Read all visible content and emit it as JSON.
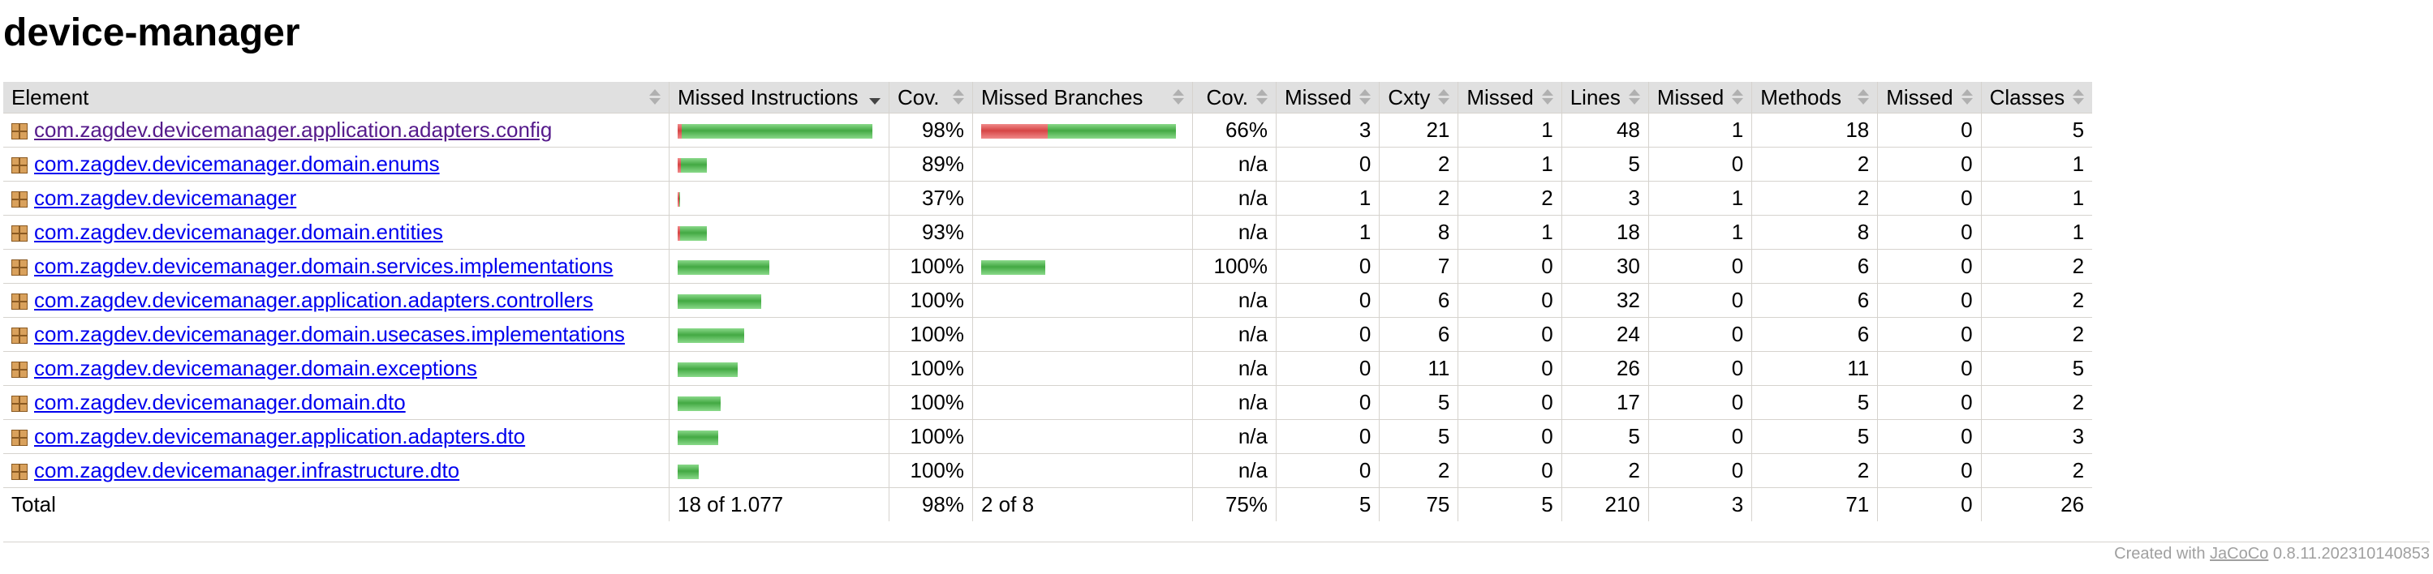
{
  "page": {
    "title": "device-manager"
  },
  "columns": {
    "element": "Element",
    "missed_instructions": "Missed Instructions",
    "cov1": "Cov.",
    "missed_branches": "Missed Branches",
    "cov2": "Cov.",
    "missed_cxty": "Missed",
    "cxty": "Cxty",
    "missed_lines": "Missed",
    "lines": "Lines",
    "missed_methods": "Missed",
    "methods": "Methods",
    "missed_classes": "Missed",
    "classes": "Classes"
  },
  "rows": [
    {
      "name": "com.zagdev.devicemanager.application.adapters.config",
      "instr_missed_frac": 0.02,
      "instr_bar": 1.0,
      "cov_i": "98%",
      "br_bar": 1.0,
      "br_missed_frac": 0.34,
      "cov_b": "66%",
      "m_cxty": "3",
      "cxty": "21",
      "m_lines": "1",
      "lines": "48",
      "m_methods": "1",
      "methods": "18",
      "m_classes": "0",
      "classes": "5",
      "visited": true
    },
    {
      "name": "com.zagdev.devicemanager.domain.enums",
      "instr_missed_frac": 0.11,
      "instr_bar": 0.15,
      "cov_i": "89%",
      "br_bar": 0,
      "br_missed_frac": 0,
      "cov_b": "n/a",
      "m_cxty": "0",
      "cxty": "2",
      "m_lines": "1",
      "lines": "5",
      "m_methods": "0",
      "methods": "2",
      "m_classes": "0",
      "classes": "1",
      "visited": false
    },
    {
      "name": "com.zagdev.devicemanager",
      "instr_missed_frac": 0.63,
      "instr_bar": 0.012,
      "cov_i": "37%",
      "br_bar": 0,
      "br_missed_frac": 0,
      "cov_b": "n/a",
      "m_cxty": "1",
      "cxty": "2",
      "m_lines": "2",
      "lines": "3",
      "m_methods": "1",
      "methods": "2",
      "m_classes": "0",
      "classes": "1",
      "visited": false
    },
    {
      "name": "com.zagdev.devicemanager.domain.entities",
      "instr_missed_frac": 0.07,
      "instr_bar": 0.15,
      "cov_i": "93%",
      "br_bar": 0,
      "br_missed_frac": 0,
      "cov_b": "n/a",
      "m_cxty": "1",
      "cxty": "8",
      "m_lines": "1",
      "lines": "18",
      "m_methods": "1",
      "methods": "8",
      "m_classes": "0",
      "classes": "1",
      "visited": false
    },
    {
      "name": "com.zagdev.devicemanager.domain.services.implementations",
      "instr_missed_frac": 0,
      "instr_bar": 0.47,
      "cov_i": "100%",
      "br_bar": 0.33,
      "br_missed_frac": 0,
      "cov_b": "100%",
      "m_cxty": "0",
      "cxty": "7",
      "m_lines": "0",
      "lines": "30",
      "m_methods": "0",
      "methods": "6",
      "m_classes": "0",
      "classes": "2",
      "visited": false
    },
    {
      "name": "com.zagdev.devicemanager.application.adapters.controllers",
      "instr_missed_frac": 0,
      "instr_bar": 0.43,
      "cov_i": "100%",
      "br_bar": 0,
      "br_missed_frac": 0,
      "cov_b": "n/a",
      "m_cxty": "0",
      "cxty": "6",
      "m_lines": "0",
      "lines": "32",
      "m_methods": "0",
      "methods": "6",
      "m_classes": "0",
      "classes": "2",
      "visited": false
    },
    {
      "name": "com.zagdev.devicemanager.domain.usecases.implementations",
      "instr_missed_frac": 0,
      "instr_bar": 0.34,
      "cov_i": "100%",
      "br_bar": 0,
      "br_missed_frac": 0,
      "cov_b": "n/a",
      "m_cxty": "0",
      "cxty": "6",
      "m_lines": "0",
      "lines": "24",
      "m_methods": "0",
      "methods": "6",
      "m_classes": "0",
      "classes": "2",
      "visited": false
    },
    {
      "name": "com.zagdev.devicemanager.domain.exceptions",
      "instr_missed_frac": 0,
      "instr_bar": 0.31,
      "cov_i": "100%",
      "br_bar": 0,
      "br_missed_frac": 0,
      "cov_b": "n/a",
      "m_cxty": "0",
      "cxty": "11",
      "m_lines": "0",
      "lines": "26",
      "m_methods": "0",
      "methods": "11",
      "m_classes": "0",
      "classes": "5",
      "visited": false
    },
    {
      "name": "com.zagdev.devicemanager.domain.dto",
      "instr_missed_frac": 0,
      "instr_bar": 0.22,
      "cov_i": "100%",
      "br_bar": 0,
      "br_missed_frac": 0,
      "cov_b": "n/a",
      "m_cxty": "0",
      "cxty": "5",
      "m_lines": "0",
      "lines": "17",
      "m_methods": "0",
      "methods": "5",
      "m_classes": "0",
      "classes": "2",
      "visited": false
    },
    {
      "name": "com.zagdev.devicemanager.application.adapters.dto",
      "instr_missed_frac": 0,
      "instr_bar": 0.21,
      "cov_i": "100%",
      "br_bar": 0,
      "br_missed_frac": 0,
      "cov_b": "n/a",
      "m_cxty": "0",
      "cxty": "5",
      "m_lines": "0",
      "lines": "5",
      "m_methods": "0",
      "methods": "5",
      "m_classes": "0",
      "classes": "3",
      "visited": false
    },
    {
      "name": "com.zagdev.devicemanager.infrastructure.dto",
      "instr_missed_frac": 0,
      "instr_bar": 0.11,
      "cov_i": "100%",
      "br_bar": 0,
      "br_missed_frac": 0,
      "cov_b": "n/a",
      "m_cxty": "0",
      "cxty": "2",
      "m_lines": "0",
      "lines": "2",
      "m_methods": "0",
      "methods": "2",
      "m_classes": "0",
      "classes": "2",
      "visited": false
    }
  ],
  "total": {
    "label": "Total",
    "instr": "18 of 1.077",
    "cov_i": "98%",
    "br": "2 of 8",
    "cov_b": "75%",
    "m_cxty": "5",
    "cxty": "75",
    "m_lines": "5",
    "lines": "210",
    "m_methods": "3",
    "methods": "71",
    "m_classes": "0",
    "classes": "26"
  },
  "footer": {
    "prefix": "Created with ",
    "link": "JaCoCo",
    "suffix": " 0.8.11.202310140853"
  },
  "colors": {
    "covered": "#43a943",
    "missed": "#d64545",
    "header_bg": "#e0e0e0"
  }
}
